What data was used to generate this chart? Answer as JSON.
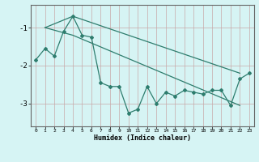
{
  "line1_x": [
    0,
    1,
    2,
    3,
    4,
    5,
    6,
    7,
    8,
    9,
    10,
    11,
    12,
    13,
    14,
    15,
    16,
    17,
    18,
    19,
    20,
    21,
    22,
    23
  ],
  "line1_y": [
    -1.85,
    -1.55,
    -1.75,
    -1.1,
    -0.7,
    -1.2,
    -1.25,
    -2.45,
    -2.55,
    -2.55,
    -3.25,
    -3.15,
    -2.55,
    -3.0,
    -2.7,
    -2.8,
    -2.65,
    -2.7,
    -2.75,
    -2.65,
    -2.65,
    -3.05,
    -2.35,
    -2.2
  ],
  "line2_x": [
    1,
    4,
    22
  ],
  "line2_y": [
    -1.0,
    -0.7,
    -2.2
  ],
  "line3_x": [
    1,
    4,
    22
  ],
  "line3_y": [
    -1.0,
    -1.2,
    -3.05
  ],
  "color": "#2e7d6e",
  "bg_color": "#d6f4f4",
  "hgrid_color": "#c8a8a8",
  "vgrid_color": "#c8a8a8",
  "xlabel": "Humidex (Indice chaleur)",
  "yticks": [
    -3,
    -2,
    -1
  ],
  "xticks": [
    0,
    1,
    2,
    3,
    4,
    5,
    6,
    7,
    8,
    9,
    10,
    11,
    12,
    13,
    14,
    15,
    16,
    17,
    18,
    19,
    20,
    21,
    22,
    23
  ],
  "xlim": [
    -0.5,
    23.5
  ],
  "ylim": [
    -3.6,
    -0.4
  ]
}
